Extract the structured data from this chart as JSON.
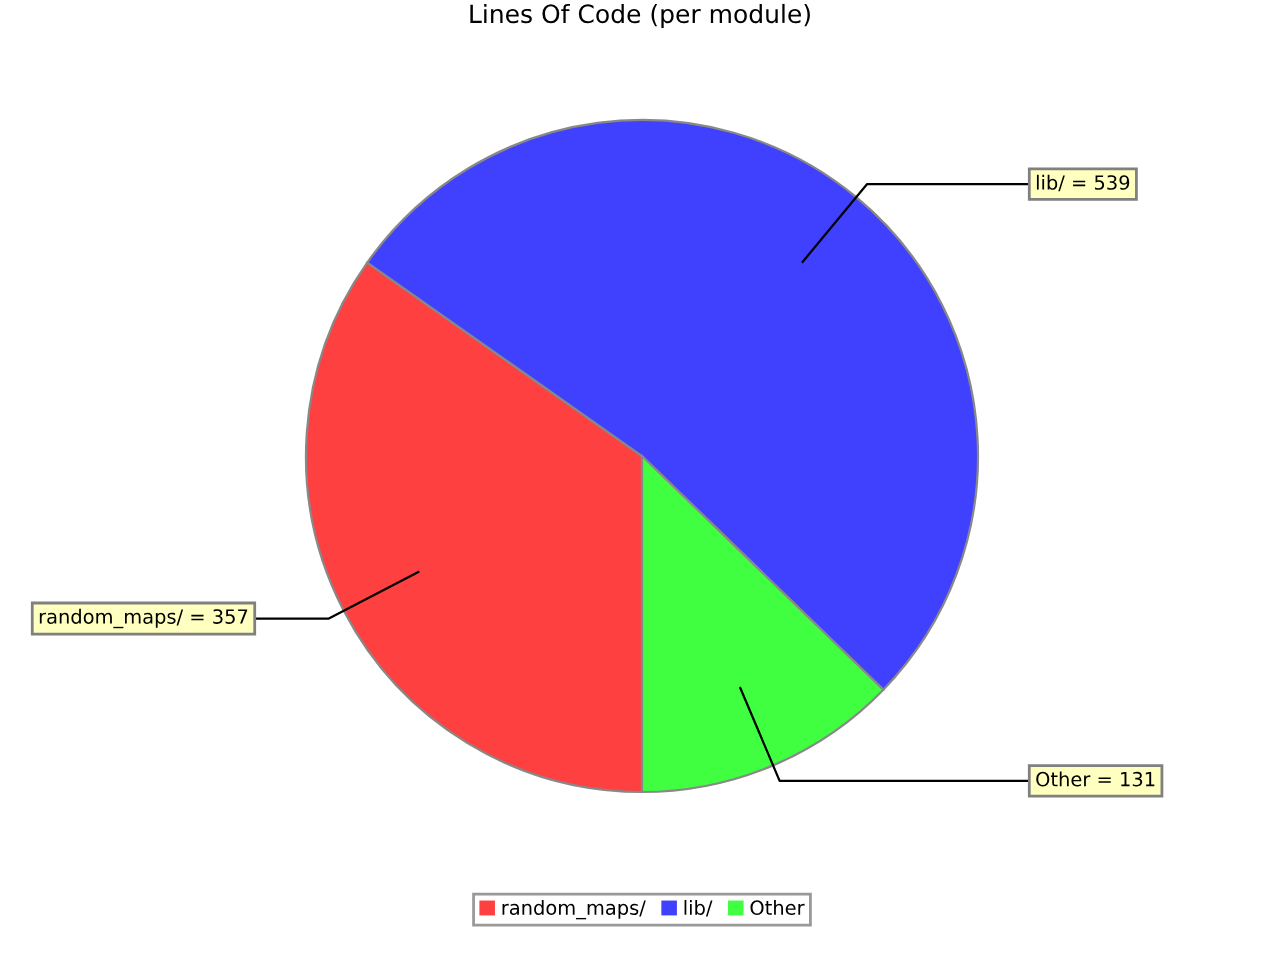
{
  "chart_data": {
    "type": "pie",
    "title": "Lines Of Code (per module)",
    "categories": [
      "random_maps/",
      "lib/",
      "Other"
    ],
    "values": [
      357,
      539,
      131
    ],
    "colors": [
      "#ff4040",
      "#4040ff",
      "#40ff40"
    ],
    "value_labels": [
      "random_maps/ = 357",
      "lib/ = 539",
      "Other = 131"
    ],
    "legend": "bottom"
  }
}
